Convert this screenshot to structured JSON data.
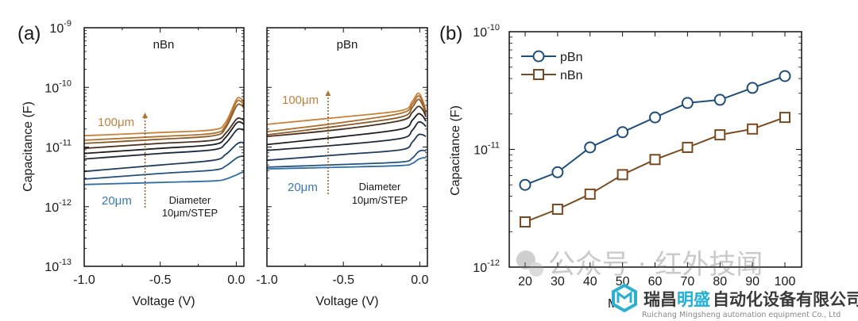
{
  "chart_data": [
    {
      "panel_label": "(a)",
      "type": "line",
      "title": "nBn",
      "xlabel": "Voltage (V)",
      "ylabel": "Capacitance (F)",
      "xlim": [
        -1.0,
        0.05
      ],
      "ylim": [
        1e-13,
        1e-09
      ],
      "yscale": "log",
      "xticks": [
        "-1.0",
        "-0.5",
        "0.0"
      ],
      "yticks": [
        "10^-13",
        "10^-12",
        "10^-11",
        "10^-10",
        "10^-9"
      ],
      "annotations": {
        "top_label": "100μm",
        "bottom_label": "20μm",
        "note_line1": "Diameter",
        "note_line2": "10μm/STEP",
        "arrow_x": -0.6
      },
      "series": [
        {
          "name": "100μm",
          "color": "#c8823a",
          "x": [
            -1.0,
            -0.5,
            -0.15,
            -0.07,
            0.0,
            0.03,
            0.05
          ],
          "y": [
            1.55e-11,
            1.75e-11,
            1.95e-11,
            2.6e-11,
            6.2e-11,
            6.5e-11,
            5.6e-11
          ]
        },
        {
          "name": "90μm",
          "color": "#b0702e",
          "x": [
            -1.0,
            -0.5,
            -0.15,
            -0.07,
            0.0,
            0.03,
            0.05
          ],
          "y": [
            1.3e-11,
            1.5e-11,
            1.7e-11,
            2.3e-11,
            5.6e-11,
            5.8e-11,
            5e-11
          ]
        },
        {
          "name": "80μm",
          "color": "#8e5a28",
          "x": [
            -1.0,
            -0.5,
            -0.15,
            -0.07,
            0.0,
            0.03,
            0.05
          ],
          "y": [
            1.15e-11,
            1.35e-11,
            1.55e-11,
            2.1e-11,
            4.8e-11,
            5.1e-11,
            4.5e-11
          ]
        },
        {
          "name": "70μm",
          "color": "#4a3020",
          "x": [
            -1.0,
            -0.5,
            -0.15,
            -0.07,
            0.0,
            0.03,
            0.05
          ],
          "y": [
            9.5e-12,
            1.15e-11,
            1.3e-11,
            1.7e-11,
            2.9e-11,
            3e-11,
            2.8e-11
          ]
        },
        {
          "name": "60μm",
          "color": "#1e1e1e",
          "x": [
            -1.0,
            -0.5,
            -0.15,
            -0.07,
            0.0,
            0.03,
            0.05
          ],
          "y": [
            7.8e-12,
            9.5e-12,
            1.1e-11,
            1.45e-11,
            2.5e-11,
            2.6e-11,
            2.4e-11
          ]
        },
        {
          "name": "50μm",
          "color": "#1c2a3a",
          "x": [
            -1.0,
            -0.5,
            -0.15,
            -0.07,
            0.0,
            0.03,
            0.05
          ],
          "y": [
            6.3e-12,
            7.8e-12,
            9e-12,
            1.15e-11,
            1.9e-11,
            2e-11,
            1.9e-11
          ]
        },
        {
          "name": "40μm",
          "color": "#1f3c5e",
          "x": [
            -1.0,
            -0.5,
            -0.15,
            -0.07,
            0.0,
            0.03,
            0.05
          ],
          "y": [
            3.9e-12,
            5e-12,
            6e-12,
            7.5e-12,
            1.1e-11,
            1.2e-11,
            1.15e-11
          ]
        },
        {
          "name": "30μm",
          "color": "#24527f",
          "x": [
            -1.0,
            -0.5,
            -0.15,
            -0.07,
            0.0,
            0.03,
            0.05
          ],
          "y": [
            2.9e-12,
            3.6e-12,
            4.1e-12,
            4.8e-12,
            6.5e-12,
            7e-12,
            7e-12
          ]
        },
        {
          "name": "20μm",
          "color": "#2f6ea6",
          "x": [
            -1.0,
            -0.5,
            -0.15,
            -0.07,
            0.0,
            0.03,
            0.05
          ],
          "y": [
            2.35e-12,
            2.55e-12,
            2.7e-12,
            2.9e-12,
            3.4e-12,
            3.7e-12,
            3.8e-12
          ]
        }
      ]
    },
    {
      "panel_label": "",
      "type": "line",
      "title": "pBn",
      "xlabel": "Voltage (V)",
      "ylabel": "",
      "xlim": [
        -1.0,
        0.05
      ],
      "ylim": [
        1e-13,
        1e-09
      ],
      "yscale": "log",
      "xticks": [
        "-1.0",
        "-0.5",
        "0.0"
      ],
      "annotations": {
        "top_label": "100μm",
        "bottom_label": "20μm",
        "note_line1": "Diameter",
        "note_line2": "10μm/STEP",
        "arrow_x": -0.6
      },
      "series": [
        {
          "name": "100μm",
          "color": "#c8823a",
          "x": [
            -1.0,
            -0.5,
            -0.12,
            -0.05,
            -0.01,
            0.02,
            0.04
          ],
          "y": [
            2.4e-11,
            3.2e-11,
            4.1e-11,
            5.8e-11,
            8e-11,
            6e-11,
            4e-11
          ]
        },
        {
          "name": "90μm",
          "color": "#b0702e",
          "x": [
            -1.0,
            -0.5,
            -0.12,
            -0.05,
            -0.01,
            0.02,
            0.04
          ],
          "y": [
            1.8e-11,
            2.6e-11,
            3.7e-11,
            5.2e-11,
            7.2e-11,
            5.6e-11,
            3.8e-11
          ]
        },
        {
          "name": "80μm",
          "color": "#8e5a28",
          "x": [
            -1.0,
            -0.5,
            -0.12,
            -0.05,
            -0.01,
            0.02,
            0.04
          ],
          "y": [
            1.6e-11,
            2.3e-11,
            3.2e-11,
            4.6e-11,
            6.3e-11,
            5e-11,
            3.5e-11
          ]
        },
        {
          "name": "70μm",
          "color": "#4a3020",
          "x": [
            -1.0,
            -0.5,
            -0.12,
            -0.05,
            -0.01,
            0.02,
            0.04
          ],
          "y": [
            1.5e-11,
            2e-11,
            2.8e-11,
            3.8e-11,
            4.8e-11,
            4.2e-11,
            3.2e-11
          ]
        },
        {
          "name": "60μm",
          "color": "#1e1e1e",
          "x": [
            -1.0,
            -0.5,
            -0.12,
            -0.05,
            -0.01,
            0.02,
            0.04
          ],
          "y": [
            1.1e-11,
            1.5e-11,
            2e-11,
            2.8e-11,
            3.6e-11,
            3.3e-11,
            2.7e-11
          ]
        },
        {
          "name": "50μm",
          "color": "#1c2a3a",
          "x": [
            -1.0,
            -0.5,
            -0.12,
            -0.05,
            -0.01,
            0.02,
            0.04
          ],
          "y": [
            8.8e-12,
            1.1e-11,
            1.4e-11,
            1.9e-11,
            2.6e-11,
            2.5e-11,
            2.2e-11
          ]
        },
        {
          "name": "40μm",
          "color": "#1f3c5e",
          "x": [
            -1.0,
            -0.5,
            -0.12,
            -0.05,
            -0.01,
            0.02,
            0.04
          ],
          "y": [
            6e-12,
            7.5e-12,
            9e-12,
            1.2e-11,
            1.6e-11,
            1.6e-11,
            1.5e-11
          ]
        },
        {
          "name": "30μm",
          "color": "#24527f",
          "x": [
            -1.0,
            -0.5,
            -0.12,
            -0.05,
            -0.01,
            0.02,
            0.04
          ],
          "y": [
            4.6e-12,
            5.1e-12,
            5.6e-12,
            6.5e-12,
            8.3e-12,
            8.8e-12,
            8.5e-12
          ]
        },
        {
          "name": "20μm",
          "color": "#2f6ea6",
          "x": [
            -1.0,
            -0.5,
            -0.12,
            -0.05,
            -0.01,
            0.02,
            0.04
          ],
          "y": [
            4.3e-12,
            4.6e-12,
            4.9e-12,
            5.3e-12,
            6.2e-12,
            6.6e-12,
            6.6e-12
          ]
        }
      ]
    },
    {
      "panel_label": "(b)",
      "type": "line",
      "title": "",
      "xlabel": "M",
      "ylabel": "Capacitance (F)",
      "xlim": [
        15,
        105
      ],
      "ylim": [
        1e-12,
        1e-10
      ],
      "yscale": "log",
      "categories": [
        20,
        30,
        40,
        50,
        60,
        70,
        80,
        90,
        100
      ],
      "xticks": [
        "20",
        "30",
        "40",
        "50",
        "60",
        "70",
        "80",
        "90",
        "100"
      ],
      "yticks": [
        "10^-12",
        "10^-11",
        "10^-10"
      ],
      "legend_position": "top-left",
      "series": [
        {
          "name": "pBn",
          "marker": "circle",
          "color": "#1f4e79",
          "values": [
            5e-12,
            6.4e-12,
            1.04e-11,
            1.4e-11,
            1.87e-11,
            2.48e-11,
            2.64e-11,
            3.33e-11,
            4.2e-11
          ]
        },
        {
          "name": "nBn",
          "marker": "square",
          "color": "#7a4a1e",
          "values": [
            2.42e-12,
            3.1e-12,
            4.17e-12,
            6.1e-12,
            8.2e-12,
            1.04e-11,
            1.33e-11,
            1.49e-11,
            1.87e-11
          ]
        }
      ]
    }
  ],
  "watermarks": {
    "wechat_text": "公众号 · 红外技闻",
    "company_cn_a": "瑞昌",
    "company_cn_b": "明盛",
    "company_cn_c": "自动化设备有限公司",
    "company_en": "Ruichang Mingsheng automation equipment Co., Ltd"
  }
}
